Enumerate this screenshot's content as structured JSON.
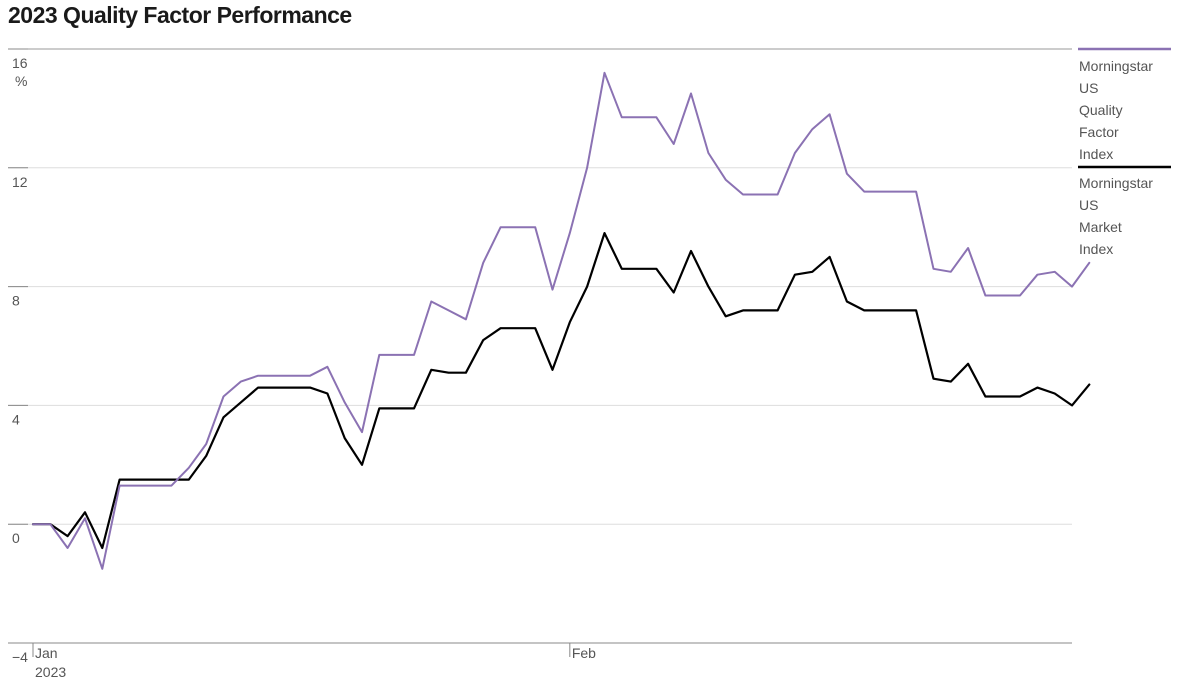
{
  "chart_data": {
    "type": "line",
    "title": "2023 Quality Factor Performance",
    "ylabel": "",
    "xlabel": "",
    "y_unit": "%",
    "ylim": [
      -4,
      16
    ],
    "yticks": [
      "16",
      "12",
      "8",
      "4",
      "0",
      "−4"
    ],
    "ytick_values": [
      16,
      12,
      8,
      4,
      0,
      -4
    ],
    "x_range": [
      "2023-01-01",
      "2023-03-02"
    ],
    "xticks": [
      {
        "date": "2023-01-01",
        "label": "Jan",
        "sublabel": "2023"
      },
      {
        "date": "2023-02-01",
        "label": "Feb",
        "sublabel": ""
      }
    ],
    "grid": true,
    "legend_placement": "right",
    "series": [
      {
        "name": "Morningstar US Quality Factor Index",
        "color": "#8b72b3",
        "points": [
          [
            "2023-01-01",
            0.0
          ],
          [
            "2023-01-02",
            0.0
          ],
          [
            "2023-01-03",
            -0.8
          ],
          [
            "2023-01-04",
            0.2
          ],
          [
            "2023-01-05",
            -1.5
          ],
          [
            "2023-01-06",
            1.3
          ],
          [
            "2023-01-09",
            1.3
          ],
          [
            "2023-01-10",
            1.9
          ],
          [
            "2023-01-11",
            2.7
          ],
          [
            "2023-01-12",
            4.3
          ],
          [
            "2023-01-13",
            4.8
          ],
          [
            "2023-01-14",
            5.0
          ],
          [
            "2023-01-17",
            5.0
          ],
          [
            "2023-01-18",
            5.3
          ],
          [
            "2023-01-19",
            4.1
          ],
          [
            "2023-01-20",
            3.1
          ],
          [
            "2023-01-21",
            5.7
          ],
          [
            "2023-01-23",
            5.7
          ],
          [
            "2023-01-24",
            7.5
          ],
          [
            "2023-01-25",
            7.2
          ],
          [
            "2023-01-26",
            6.9
          ],
          [
            "2023-01-27",
            8.8
          ],
          [
            "2023-01-28",
            10.0
          ],
          [
            "2023-01-30",
            10.0
          ],
          [
            "2023-01-31",
            7.9
          ],
          [
            "2023-02-01",
            9.8
          ],
          [
            "2023-02-02",
            12.0
          ],
          [
            "2023-02-03",
            15.2
          ],
          [
            "2023-02-04",
            13.7
          ],
          [
            "2023-02-06",
            13.7
          ],
          [
            "2023-02-07",
            12.8
          ],
          [
            "2023-02-08",
            14.5
          ],
          [
            "2023-02-09",
            12.5
          ],
          [
            "2023-02-10",
            11.6
          ],
          [
            "2023-02-11",
            11.1
          ],
          [
            "2023-02-13",
            11.1
          ],
          [
            "2023-02-14",
            12.5
          ],
          [
            "2023-02-15",
            13.3
          ],
          [
            "2023-02-16",
            13.8
          ],
          [
            "2023-02-17",
            11.8
          ],
          [
            "2023-02-18",
            11.2
          ],
          [
            "2023-02-21",
            11.2
          ],
          [
            "2023-02-22",
            8.6
          ],
          [
            "2023-02-23",
            8.5
          ],
          [
            "2023-02-24",
            9.3
          ],
          [
            "2023-02-25",
            7.7
          ],
          [
            "2023-02-27",
            7.7
          ],
          [
            "2023-02-28",
            8.4
          ],
          [
            "2023-03-01",
            8.5
          ],
          [
            "2023-03-02",
            8.0
          ],
          [
            "2023-03-03",
            8.8
          ]
        ]
      },
      {
        "name": "Morningstar US Market Index",
        "color": "#000000",
        "points": [
          [
            "2023-01-01",
            0.0
          ],
          [
            "2023-01-02",
            0.0
          ],
          [
            "2023-01-03",
            -0.4
          ],
          [
            "2023-01-04",
            0.4
          ],
          [
            "2023-01-05",
            -0.8
          ],
          [
            "2023-01-06",
            1.5
          ],
          [
            "2023-01-09",
            1.5
          ],
          [
            "2023-01-10",
            1.5
          ],
          [
            "2023-01-11",
            2.3
          ],
          [
            "2023-01-12",
            3.6
          ],
          [
            "2023-01-13",
            4.1
          ],
          [
            "2023-01-14",
            4.6
          ],
          [
            "2023-01-17",
            4.6
          ],
          [
            "2023-01-18",
            4.4
          ],
          [
            "2023-01-19",
            2.9
          ],
          [
            "2023-01-20",
            2.0
          ],
          [
            "2023-01-21",
            3.9
          ],
          [
            "2023-01-23",
            3.9
          ],
          [
            "2023-01-24",
            5.2
          ],
          [
            "2023-01-25",
            5.1
          ],
          [
            "2023-01-26",
            5.1
          ],
          [
            "2023-01-27",
            6.2
          ],
          [
            "2023-01-28",
            6.6
          ],
          [
            "2023-01-30",
            6.6
          ],
          [
            "2023-01-31",
            5.2
          ],
          [
            "2023-02-01",
            6.8
          ],
          [
            "2023-02-02",
            8.0
          ],
          [
            "2023-02-03",
            9.8
          ],
          [
            "2023-02-04",
            8.6
          ],
          [
            "2023-02-06",
            8.6
          ],
          [
            "2023-02-07",
            7.8
          ],
          [
            "2023-02-08",
            9.2
          ],
          [
            "2023-02-09",
            8.0
          ],
          [
            "2023-02-10",
            7.0
          ],
          [
            "2023-02-11",
            7.2
          ],
          [
            "2023-02-13",
            7.2
          ],
          [
            "2023-02-14",
            8.4
          ],
          [
            "2023-02-15",
            8.5
          ],
          [
            "2023-02-16",
            9.0
          ],
          [
            "2023-02-17",
            7.5
          ],
          [
            "2023-02-18",
            7.2
          ],
          [
            "2023-02-21",
            7.2
          ],
          [
            "2023-02-22",
            4.9
          ],
          [
            "2023-02-23",
            4.8
          ],
          [
            "2023-02-24",
            5.4
          ],
          [
            "2023-02-25",
            4.3
          ],
          [
            "2023-02-27",
            4.3
          ],
          [
            "2023-02-28",
            4.6
          ],
          [
            "2023-03-01",
            4.4
          ],
          [
            "2023-03-02",
            4.0
          ],
          [
            "2023-03-03",
            4.7
          ]
        ]
      }
    ],
    "legend": {
      "quality_lines": [
        "Morningstar",
        "US",
        "Quality",
        "Factor",
        "Index"
      ],
      "market_lines": [
        "Morningstar",
        "US",
        "Market",
        "Index"
      ]
    }
  }
}
